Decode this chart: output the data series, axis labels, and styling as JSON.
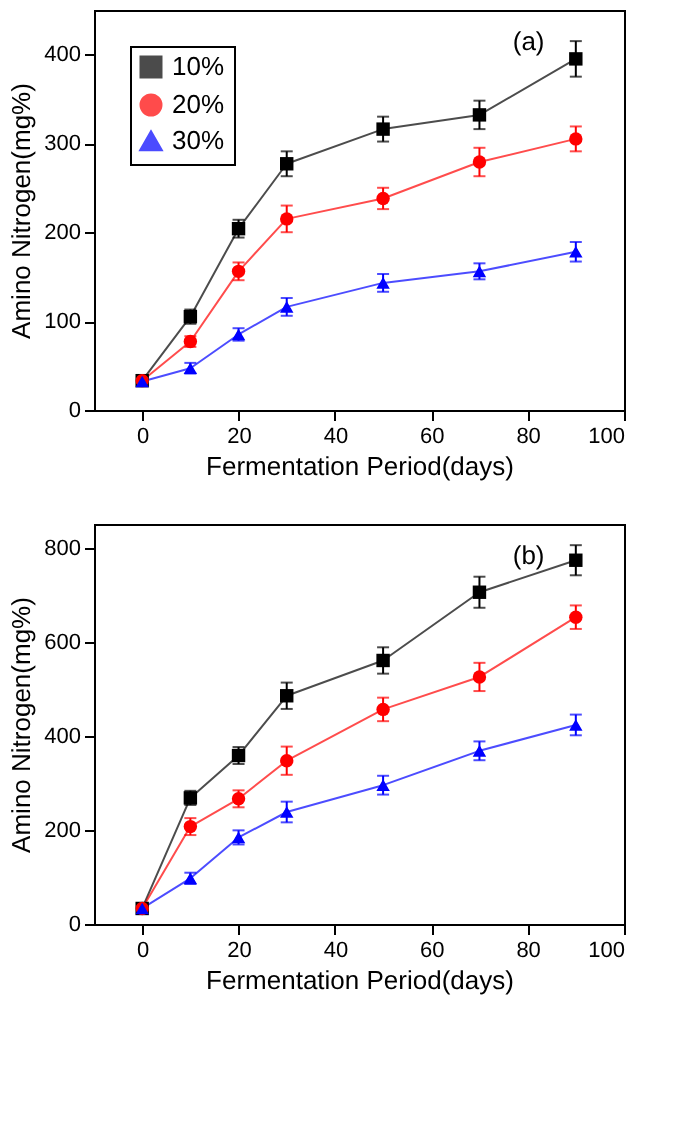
{
  "chart_data": [
    {
      "type": "line",
      "xlabel": "Fermentation Period(days)",
      "ylabel": "Amino Nitrogen(mg%)",
      "annotations": [
        "(a)"
      ],
      "x": [
        0,
        10,
        20,
        30,
        50,
        70,
        90
      ],
      "xlim": [
        -10,
        100
      ],
      "xticks": [
        0,
        20,
        40,
        60,
        80,
        100
      ],
      "ylim": [
        0,
        450
      ],
      "yticks": [
        0,
        100,
        200,
        300,
        400
      ],
      "grid": false,
      "legend": "top left",
      "series": [
        {
          "name": "10%",
          "color": "#000000",
          "marker": "square",
          "values": [
            33,
            105,
            204,
            277,
            316,
            332,
            395
          ],
          "errors": [
            5,
            8,
            10,
            14,
            14,
            16,
            20
          ]
        },
        {
          "name": "20%",
          "color": "#ff0000",
          "marker": "circle",
          "values": [
            33,
            77,
            156,
            215,
            238,
            279,
            305
          ],
          "errors": [
            5,
            6,
            10,
            15,
            12,
            16,
            14
          ]
        },
        {
          "name": "30%",
          "color": "#0000ff",
          "marker": "triangle",
          "values": [
            32,
            47,
            85,
            116,
            143,
            156,
            178
          ],
          "errors": [
            5,
            6,
            7,
            10,
            10,
            9,
            11
          ]
        }
      ]
    },
    {
      "type": "line",
      "xlabel": "Fermentation Period(days)",
      "ylabel": "Amino Nitrogen(mg%)",
      "annotations": [
        "(b)"
      ],
      "x": [
        0,
        10,
        20,
        30,
        50,
        70,
        90
      ],
      "xlim": [
        -10,
        100
      ],
      "xticks": [
        0,
        20,
        40,
        60,
        80,
        100
      ],
      "ylim": [
        0,
        850
      ],
      "yticks": [
        0,
        200,
        400,
        600,
        800
      ],
      "grid": false,
      "legend": "top left",
      "series": [
        {
          "name": "10%",
          "color": "#000000",
          "marker": "square",
          "values": [
            33,
            268,
            358,
            485,
            560,
            705,
            773
          ],
          "errors": [
            5,
            15,
            18,
            28,
            28,
            33,
            32
          ]
        },
        {
          "name": "20%",
          "color": "#ff0000",
          "marker": "circle",
          "values": [
            33,
            207,
            266,
            347,
            456,
            525,
            652
          ],
          "errors": [
            5,
            18,
            18,
            30,
            25,
            30,
            25
          ]
        },
        {
          "name": "30%",
          "color": "#0000ff",
          "marker": "triangle",
          "values": [
            33,
            97,
            184,
            238,
            295,
            368,
            423
          ],
          "errors": [
            5,
            12,
            15,
            22,
            20,
            20,
            22
          ]
        }
      ]
    }
  ]
}
